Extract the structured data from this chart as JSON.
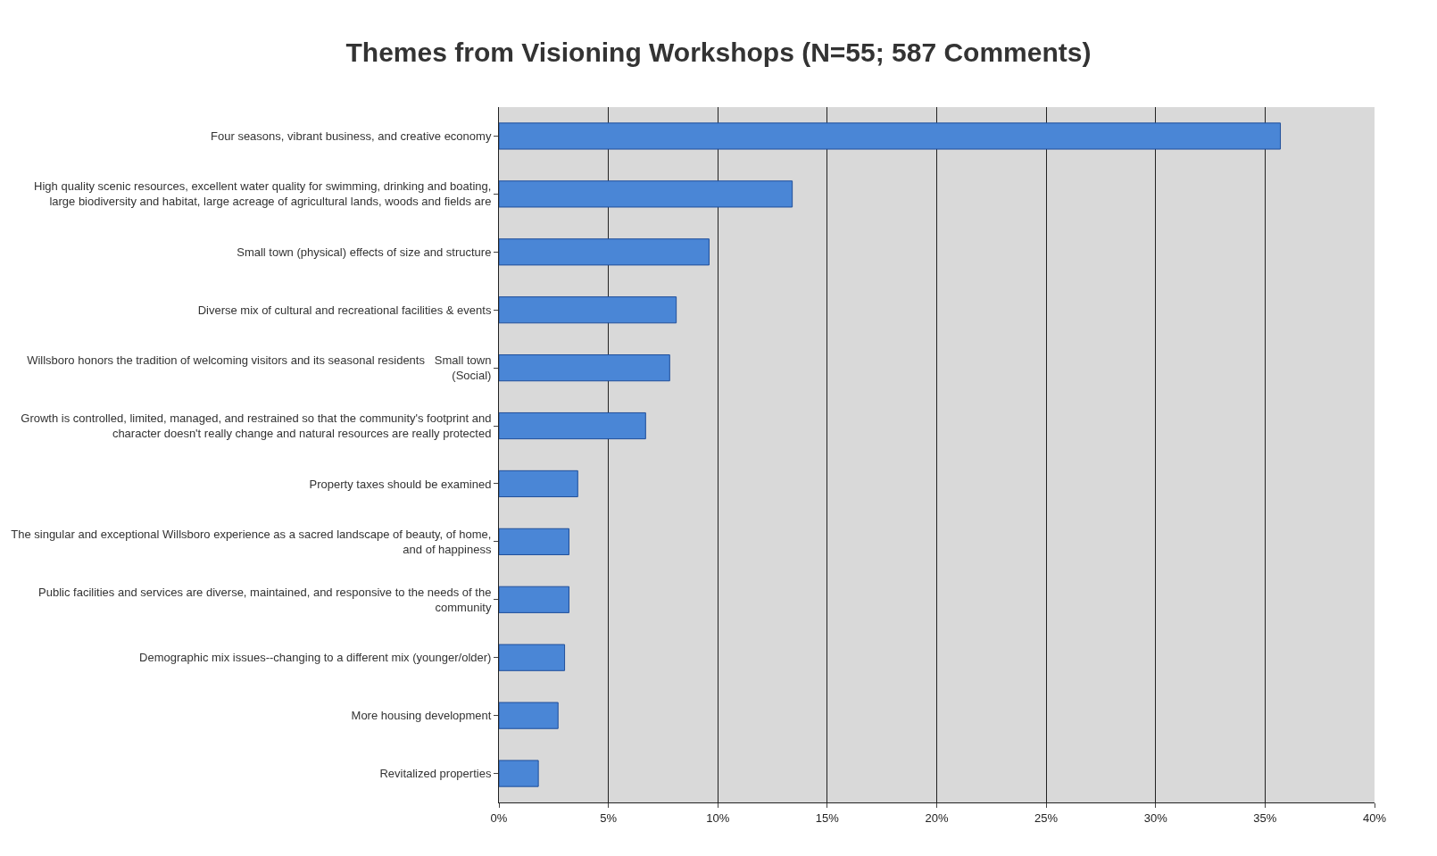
{
  "chart_data": {
    "type": "bar",
    "orientation": "horizontal",
    "title": "Themes from Visioning Workshops (N=55; 587 Comments)",
    "categories": [
      "Four seasons, vibrant business, and creative economy",
      "High quality scenic resources, excellent water quality for swimming, drinking and boating, large biodiversity and habitat, large acreage of agricultural lands, woods and fields are",
      "Small town (physical) effects of size and structure",
      "Diverse mix of cultural and recreational facilities & events",
      "Willsboro honors the tradition of welcoming visitors and its seasonal residents   Small town (Social)",
      "Growth is controlled, limited, managed, and restrained so that the community's footprint and character doesn't really change and natural resources are really protected",
      "Property taxes should be examined",
      "The singular and exceptional Willsboro experience as a sacred landscape of beauty, of home, and of happiness",
      "Public facilities and services are diverse, maintained, and responsive to the needs of the community",
      "Demographic mix issues--changing to a different mix (younger/older)",
      "More housing development",
      "Revitalized properties"
    ],
    "values": [
      35.7,
      13.4,
      9.6,
      8.1,
      7.8,
      6.7,
      3.6,
      3.2,
      3.2,
      3.0,
      2.7,
      1.8
    ],
    "color": "#4a86d6",
    "xlim": [
      0,
      40
    ],
    "xticks": [
      {
        "value": 0,
        "label": "0%"
      },
      {
        "value": 5,
        "label": "5%"
      },
      {
        "value": 10,
        "label": "10%"
      },
      {
        "value": 15,
        "label": "15%"
      },
      {
        "value": 20,
        "label": "20%"
      },
      {
        "value": 25,
        "label": "25%"
      },
      {
        "value": 30,
        "label": "30%"
      },
      {
        "value": 35,
        "label": "35%"
      },
      {
        "value": 40,
        "label": "40%"
      }
    ],
    "grid": "x"
  }
}
